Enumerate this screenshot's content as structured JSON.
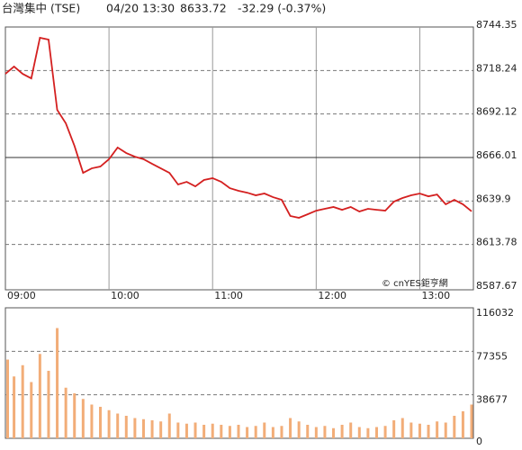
{
  "header": {
    "name": "台灣集中 (TSE)",
    "time": "04/20 13:30",
    "price": "8633.72",
    "change": "-32.29 (-0.37%)",
    "change_color": "#2aa02a"
  },
  "chart_data": [
    {
      "type": "line",
      "watermark": "© cnYES鉅亨網",
      "x": [
        "09:00",
        "09:05",
        "09:10",
        "09:15",
        "09:20",
        "09:25",
        "09:30",
        "09:35",
        "09:40",
        "09:45",
        "09:50",
        "09:55",
        "10:00",
        "10:05",
        "10:10",
        "10:15",
        "10:20",
        "10:25",
        "10:30",
        "10:35",
        "10:40",
        "10:45",
        "10:50",
        "10:55",
        "11:00",
        "11:05",
        "11:10",
        "11:15",
        "11:20",
        "11:25",
        "11:30",
        "11:35",
        "11:40",
        "11:45",
        "11:50",
        "11:55",
        "12:00",
        "12:05",
        "12:10",
        "12:15",
        "12:20",
        "12:25",
        "12:30",
        "12:35",
        "12:40",
        "12:45",
        "12:50",
        "12:55",
        "13:00",
        "13:05",
        "13:10",
        "13:15",
        "13:20",
        "13:25",
        "13:30"
      ],
      "xlim": [
        "09:00",
        "13:30"
      ],
      "xticks": [
        "09:00",
        "10:00",
        "11:00",
        "12:00",
        "13:00"
      ],
      "series": [
        {
          "name": "TSE",
          "color": "#d42020",
          "values": [
            8716.2,
            8720.6,
            8716.2,
            8713.5,
            8737.9,
            8736.8,
            8694.6,
            8686.5,
            8673.0,
            8656.8,
            8659.5,
            8660.6,
            8665.0,
            8672.0,
            8668.7,
            8666.5,
            8665.0,
            8662.2,
            8659.5,
            8656.8,
            8649.8,
            8651.4,
            8648.7,
            8652.5,
            8653.6,
            8651.4,
            8647.6,
            8646.0,
            8644.9,
            8643.3,
            8644.4,
            8642.2,
            8640.6,
            8630.9,
            8629.8,
            8631.9,
            8634.1,
            8635.2,
            8636.3,
            8634.6,
            8636.3,
            8633.6,
            8635.2,
            8634.6,
            8634.1,
            8639.5,
            8641.7,
            8643.3,
            8644.4,
            8642.7,
            8643.8,
            8637.9,
            8640.6,
            8637.9,
            8633.72
          ]
        }
      ],
      "reference": 8666.01,
      "ylim": [
        8587.67,
        8744.35
      ],
      "yticks": [
        8587.67,
        8613.78,
        8639.9,
        8666.01,
        8692.12,
        8718.24,
        8744.35
      ],
      "grid": true
    },
    {
      "type": "bar",
      "x": [
        "09:00",
        "09:05",
        "09:10",
        "09:15",
        "09:20",
        "09:25",
        "09:30",
        "09:35",
        "09:40",
        "09:45",
        "09:50",
        "09:55",
        "10:00",
        "10:05",
        "10:10",
        "10:15",
        "10:20",
        "10:25",
        "10:30",
        "10:35",
        "10:40",
        "10:45",
        "10:50",
        "10:55",
        "11:00",
        "11:05",
        "11:10",
        "11:15",
        "11:20",
        "11:25",
        "11:30",
        "11:35",
        "11:40",
        "11:45",
        "11:50",
        "11:55",
        "12:00",
        "12:05",
        "12:10",
        "12:15",
        "12:20",
        "12:25",
        "12:30",
        "12:35",
        "12:40",
        "12:45",
        "12:50",
        "12:55",
        "13:00",
        "13:05",
        "13:10",
        "13:15",
        "13:20",
        "13:25",
        "13:30"
      ],
      "xlim": [
        "09:00",
        "13:30"
      ],
      "values": [
        70000,
        55000,
        65000,
        50000,
        75000,
        60000,
        98000,
        45000,
        40000,
        35000,
        30000,
        28000,
        25000,
        22000,
        20000,
        18000,
        17000,
        16000,
        15000,
        22000,
        14000,
        13000,
        14000,
        12000,
        13000,
        12000,
        11000,
        12000,
        10000,
        11000,
        14000,
        10000,
        11000,
        18000,
        15000,
        12000,
        10000,
        11000,
        9000,
        12000,
        14000,
        10000,
        9000,
        10000,
        11000,
        16000,
        18000,
        14000,
        13000,
        12000,
        15000,
        14000,
        20000,
        24000,
        30000
      ],
      "color": "#f2ad78",
      "ylim": [
        0,
        116032
      ],
      "yticks": [
        0,
        38677,
        77355,
        116032
      ],
      "grid": true
    }
  ]
}
